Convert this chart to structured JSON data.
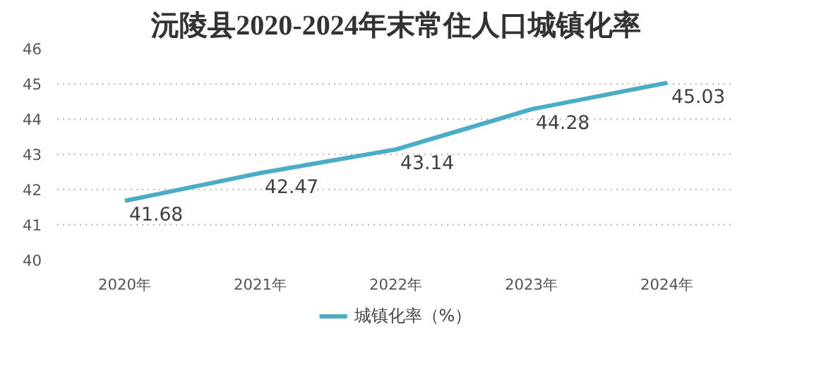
{
  "chart_data": {
    "type": "line",
    "title": "沅陵县2020-2024年末常住人口城镇化率",
    "categories": [
      "2020年",
      "2021年",
      "2022年",
      "2023年",
      "2024年"
    ],
    "series": [
      {
        "name": "城镇化率（%）",
        "color": "#4bacc6",
        "values": [
          41.68,
          42.47,
          43.14,
          44.28,
          45.03
        ]
      }
    ],
    "ylim": [
      40,
      46
    ],
    "yticks": [
      40,
      41,
      42,
      43,
      44,
      45,
      46
    ],
    "grid": "y",
    "legend": "bottom",
    "data_labels": true,
    "marker": "none",
    "line_style": "solid"
  }
}
